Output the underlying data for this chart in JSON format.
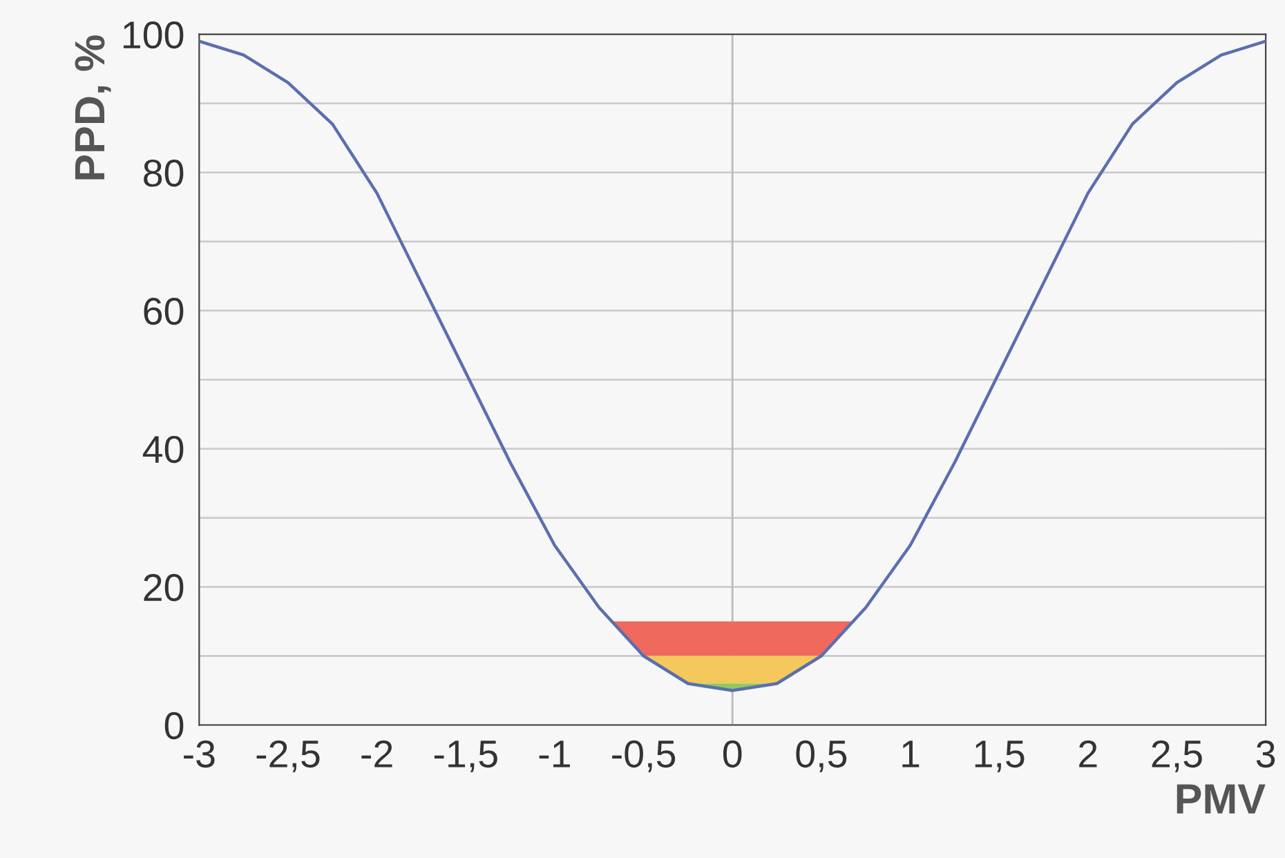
{
  "chart_data": {
    "type": "line",
    "xlabel": "PMV",
    "ylabel": "PPD, %",
    "x": [
      -3,
      -2.75,
      -2.5,
      -2.25,
      -2,
      -1.75,
      -1.5,
      -1.25,
      -1,
      -0.75,
      -0.5,
      -0.25,
      0,
      0.25,
      0.5,
      0.75,
      1,
      1.25,
      1.5,
      1.75,
      2,
      2.25,
      2.5,
      2.75,
      3
    ],
    "series": [
      {
        "color": "#5a6fae",
        "values": [
          99,
          97,
          93,
          87,
          77,
          64,
          51,
          38,
          26,
          17,
          10,
          6,
          5,
          6,
          10,
          17,
          26,
          38,
          51,
          64,
          77,
          87,
          93,
          97,
          99
        ]
      }
    ],
    "xlim": [
      -3,
      3
    ],
    "ylim": [
      0,
      100
    ],
    "xticks": [
      {
        "value": -3,
        "label": "-3"
      },
      {
        "value": -2.5,
        "label": "-2,5"
      },
      {
        "value": -2,
        "label": "-2"
      },
      {
        "value": -1.5,
        "label": "-1,5"
      },
      {
        "value": -1,
        "label": "-1"
      },
      {
        "value": -0.5,
        "label": "-0,5"
      },
      0,
      {
        "value": 0.5,
        "label": "0,5"
      },
      1,
      {
        "value": 1.5,
        "label": "1,5"
      },
      2,
      {
        "value": 2.5,
        "label": "2,5"
      },
      3
    ],
    "yticks": [
      0,
      {
        "value": 10,
        "label": null
      },
      20,
      {
        "value": 30,
        "label": null
      },
      40,
      {
        "value": 50,
        "label": null
      },
      60,
      {
        "value": 70,
        "label": null
      },
      80,
      {
        "value": 90,
        "label": null
      },
      100
    ],
    "grid": "y",
    "marker": "none",
    "line_style": "solid",
    "legend": false,
    "ref_lines": [
      {
        "axis": "x",
        "value": 0,
        "color": "#bbbbbb"
      }
    ],
    "bands": [
      {
        "axis": "y",
        "from": 10,
        "to": 15,
        "color": "#ef6a5c"
      },
      {
        "axis": "y",
        "from": 6,
        "to": 10,
        "color": "#f4c85a"
      },
      {
        "axis": "y",
        "from": 5,
        "to": 6,
        "color": "#8fc860"
      }
    ]
  }
}
